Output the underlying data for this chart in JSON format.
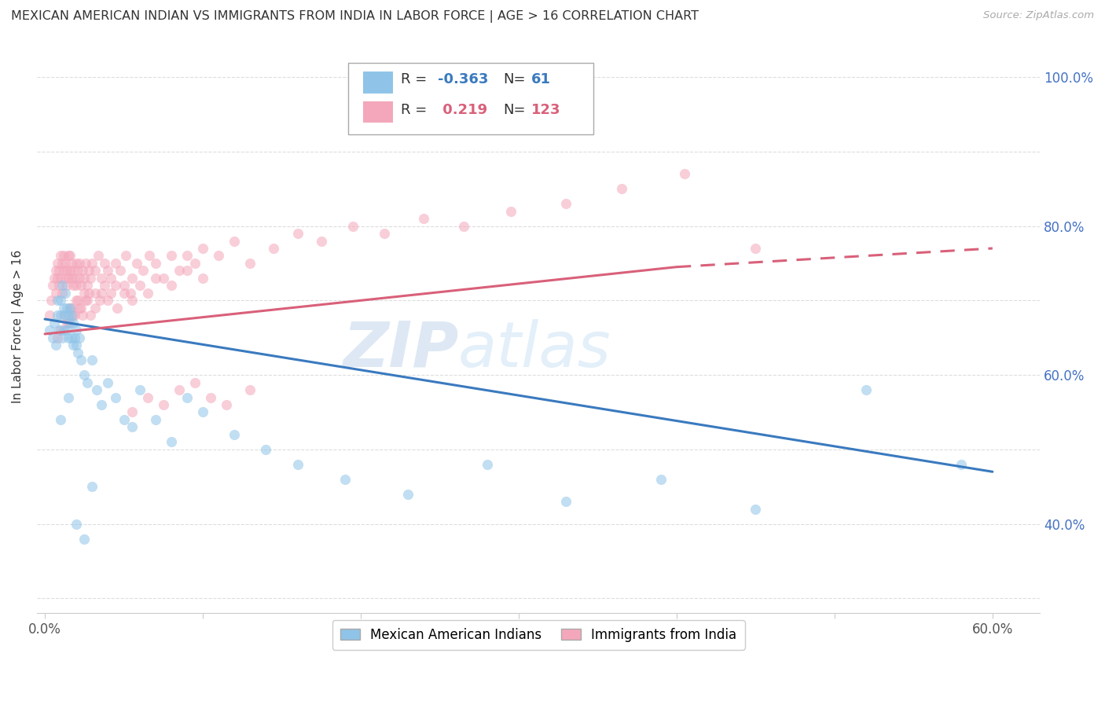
{
  "title": "MEXICAN AMERICAN INDIAN VS IMMIGRANTS FROM INDIA IN LABOR FORCE | AGE > 16 CORRELATION CHART",
  "source": "Source: ZipAtlas.com",
  "ylabel": "In Labor Force | Age > 16",
  "x_ticks": [
    0.0,
    0.1,
    0.2,
    0.3,
    0.4,
    0.5,
    0.6
  ],
  "y_ticks": [
    0.3,
    0.4,
    0.5,
    0.6,
    0.7,
    0.8,
    0.9,
    1.0
  ],
  "y_tick_labels": [
    "",
    "40.0%",
    "",
    "60.0%",
    "",
    "80.0%",
    "",
    "100.0%"
  ],
  "xlim": [
    -0.005,
    0.63
  ],
  "ylim": [
    0.28,
    1.05
  ],
  "legend_blue_label": "Mexican American Indians",
  "legend_pink_label": "Immigrants from India",
  "r_blue": -0.363,
  "n_blue": 61,
  "r_pink": 0.219,
  "n_pink": 123,
  "blue_color": "#8fc4e8",
  "pink_color": "#f4a7bb",
  "blue_line_color": "#3a7abf",
  "pink_line_color": "#d9607a",
  "watermark_zip": "ZIP",
  "watermark_atlas": "atlas",
  "blue_x": [
    0.003,
    0.005,
    0.006,
    0.007,
    0.008,
    0.008,
    0.009,
    0.01,
    0.01,
    0.011,
    0.011,
    0.012,
    0.012,
    0.013,
    0.013,
    0.014,
    0.014,
    0.015,
    0.015,
    0.016,
    0.016,
    0.017,
    0.017,
    0.018,
    0.018,
    0.019,
    0.02,
    0.02,
    0.021,
    0.022,
    0.023,
    0.025,
    0.027,
    0.03,
    0.033,
    0.036,
    0.04,
    0.045,
    0.05,
    0.055,
    0.06,
    0.07,
    0.08,
    0.09,
    0.1,
    0.12,
    0.14,
    0.16,
    0.19,
    0.23,
    0.28,
    0.33,
    0.39,
    0.45,
    0.52,
    0.58,
    0.01,
    0.015,
    0.02,
    0.025,
    0.03
  ],
  "blue_y": [
    0.66,
    0.65,
    0.67,
    0.64,
    0.68,
    0.7,
    0.66,
    0.68,
    0.7,
    0.72,
    0.65,
    0.69,
    0.66,
    0.68,
    0.71,
    0.66,
    0.69,
    0.65,
    0.68,
    0.67,
    0.69,
    0.65,
    0.68,
    0.64,
    0.67,
    0.65,
    0.66,
    0.64,
    0.63,
    0.65,
    0.62,
    0.6,
    0.59,
    0.62,
    0.58,
    0.56,
    0.59,
    0.57,
    0.54,
    0.53,
    0.58,
    0.54,
    0.51,
    0.57,
    0.55,
    0.52,
    0.5,
    0.48,
    0.46,
    0.44,
    0.48,
    0.43,
    0.46,
    0.42,
    0.58,
    0.48,
    0.54,
    0.57,
    0.4,
    0.38,
    0.45
  ],
  "pink_x": [
    0.003,
    0.004,
    0.005,
    0.006,
    0.007,
    0.007,
    0.008,
    0.008,
    0.009,
    0.009,
    0.01,
    0.01,
    0.011,
    0.011,
    0.012,
    0.012,
    0.013,
    0.013,
    0.014,
    0.014,
    0.015,
    0.015,
    0.016,
    0.016,
    0.017,
    0.017,
    0.018,
    0.018,
    0.019,
    0.02,
    0.02,
    0.021,
    0.022,
    0.022,
    0.023,
    0.024,
    0.025,
    0.026,
    0.027,
    0.028,
    0.029,
    0.03,
    0.032,
    0.034,
    0.036,
    0.038,
    0.04,
    0.042,
    0.045,
    0.048,
    0.051,
    0.055,
    0.058,
    0.062,
    0.066,
    0.07,
    0.075,
    0.08,
    0.085,
    0.09,
    0.095,
    0.1,
    0.11,
    0.12,
    0.13,
    0.145,
    0.16,
    0.175,
    0.195,
    0.215,
    0.24,
    0.265,
    0.295,
    0.33,
    0.365,
    0.405,
    0.45,
    0.008,
    0.01,
    0.012,
    0.014,
    0.016,
    0.018,
    0.02,
    0.022,
    0.024,
    0.026,
    0.028,
    0.032,
    0.036,
    0.04,
    0.045,
    0.05,
    0.055,
    0.06,
    0.065,
    0.07,
    0.08,
    0.09,
    0.1,
    0.055,
    0.065,
    0.075,
    0.085,
    0.095,
    0.105,
    0.115,
    0.13,
    0.015,
    0.017,
    0.019,
    0.021,
    0.023,
    0.025,
    0.027,
    0.029,
    0.032,
    0.035,
    0.038,
    0.042,
    0.046,
    0.05,
    0.054
  ],
  "pink_y": [
    0.68,
    0.7,
    0.72,
    0.73,
    0.71,
    0.74,
    0.73,
    0.75,
    0.72,
    0.74,
    0.76,
    0.73,
    0.75,
    0.71,
    0.74,
    0.76,
    0.73,
    0.75,
    0.72,
    0.74,
    0.76,
    0.73,
    0.74,
    0.76,
    0.73,
    0.75,
    0.72,
    0.74,
    0.73,
    0.75,
    0.72,
    0.74,
    0.73,
    0.75,
    0.72,
    0.74,
    0.73,
    0.75,
    0.72,
    0.74,
    0.73,
    0.75,
    0.74,
    0.76,
    0.73,
    0.75,
    0.74,
    0.73,
    0.75,
    0.74,
    0.76,
    0.73,
    0.75,
    0.74,
    0.76,
    0.75,
    0.73,
    0.76,
    0.74,
    0.76,
    0.75,
    0.77,
    0.76,
    0.78,
    0.75,
    0.77,
    0.79,
    0.78,
    0.8,
    0.79,
    0.81,
    0.8,
    0.82,
    0.83,
    0.85,
    0.87,
    0.77,
    0.65,
    0.66,
    0.68,
    0.67,
    0.69,
    0.68,
    0.7,
    0.69,
    0.68,
    0.7,
    0.71,
    0.69,
    0.71,
    0.7,
    0.72,
    0.71,
    0.7,
    0.72,
    0.71,
    0.73,
    0.72,
    0.74,
    0.73,
    0.55,
    0.57,
    0.56,
    0.58,
    0.59,
    0.57,
    0.56,
    0.58,
    0.67,
    0.69,
    0.68,
    0.7,
    0.69,
    0.71,
    0.7,
    0.68,
    0.71,
    0.7,
    0.72,
    0.71,
    0.69,
    0.72,
    0.71
  ]
}
